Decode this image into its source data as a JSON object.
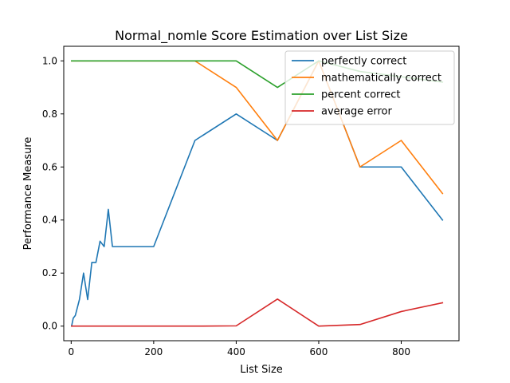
{
  "chart_data": {
    "type": "line",
    "title": "Normal_nomle Score Estimation over List Size",
    "xlabel": "List Size",
    "ylabel": "Performance Measure",
    "xlim": [
      -18,
      940
    ],
    "ylim": [
      -0.055,
      1.055
    ],
    "xticks": [
      0,
      200,
      400,
      600,
      800
    ],
    "xtick_labels": [
      "0",
      "200",
      "400",
      "600",
      "800"
    ],
    "yticks": [
      0.0,
      0.2,
      0.4,
      0.6,
      0.8,
      1.0
    ],
    "ytick_labels": [
      "0.0",
      "0.2",
      "0.4",
      "0.6",
      "0.8",
      "1.0"
    ],
    "grid": false,
    "legend_position": "top-right",
    "series": [
      {
        "name": "perfectly correct",
        "color": "#1f77b4",
        "x": [
          1,
          5,
          10,
          20,
          30,
          40,
          50,
          60,
          70,
          80,
          90,
          100,
          200,
          300,
          400,
          500,
          600,
          700,
          800,
          900
        ],
        "y": [
          0.0,
          0.03,
          0.04,
          0.1,
          0.2,
          0.1,
          0.24,
          0.24,
          0.32,
          0.3,
          0.44,
          0.3,
          0.3,
          0.7,
          0.8,
          0.7,
          1.0,
          0.6,
          0.6,
          0.4
        ]
      },
      {
        "name": "mathematically correct",
        "color": "#ff7f0e",
        "x": [
          1,
          5,
          10,
          20,
          30,
          40,
          50,
          60,
          70,
          80,
          90,
          100,
          200,
          300,
          400,
          500,
          600,
          700,
          800,
          900
        ],
        "y": [
          1.0,
          1.0,
          1.0,
          1.0,
          1.0,
          1.0,
          1.0,
          1.0,
          1.0,
          1.0,
          1.0,
          1.0,
          1.0,
          1.0,
          0.9,
          0.7,
          1.0,
          0.6,
          0.7,
          0.5
        ]
      },
      {
        "name": "percent correct",
        "color": "#2ca02c",
        "x": [
          1,
          5,
          10,
          20,
          30,
          40,
          50,
          60,
          70,
          80,
          90,
          100,
          200,
          300,
          400,
          500,
          600,
          700,
          800,
          900
        ],
        "y": [
          1.0,
          1.0,
          1.0,
          1.0,
          1.0,
          1.0,
          1.0,
          1.0,
          1.0,
          1.0,
          1.0,
          1.0,
          1.0,
          1.0,
          1.0,
          0.9,
          1.0,
          0.96,
          0.94,
          0.92
        ]
      },
      {
        "name": "average error",
        "color": "#d62728",
        "x": [
          1,
          5,
          10,
          20,
          30,
          40,
          50,
          60,
          70,
          80,
          90,
          100,
          200,
          300,
          400,
          500,
          600,
          700,
          800,
          900
        ],
        "y": [
          0.0,
          0.0,
          0.0,
          0.0,
          0.0,
          0.0,
          0.0,
          0.0,
          0.0,
          0.0,
          0.0,
          0.0,
          0.0,
          0.0,
          0.001,
          0.102,
          0.0,
          0.006,
          0.055,
          0.088
        ]
      }
    ]
  }
}
